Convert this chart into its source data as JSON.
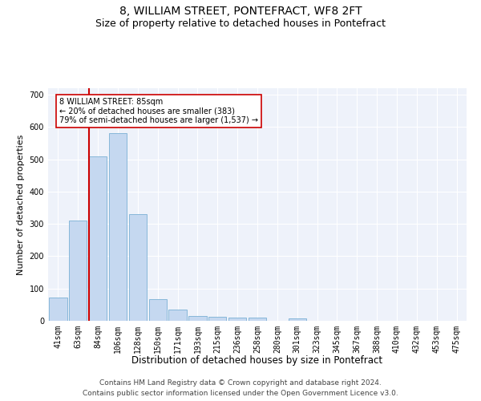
{
  "title": "8, WILLIAM STREET, PONTEFRACT, WF8 2FT",
  "subtitle": "Size of property relative to detached houses in Pontefract",
  "xlabel": "Distribution of detached houses by size in Pontefract",
  "ylabel": "Number of detached properties",
  "categories": [
    "41sqm",
    "63sqm",
    "84sqm",
    "106sqm",
    "128sqm",
    "150sqm",
    "171sqm",
    "193sqm",
    "215sqm",
    "236sqm",
    "258sqm",
    "280sqm",
    "301sqm",
    "323sqm",
    "345sqm",
    "367sqm",
    "388sqm",
    "410sqm",
    "432sqm",
    "453sqm",
    "475sqm"
  ],
  "values": [
    72,
    310,
    510,
    580,
    330,
    68,
    36,
    15,
    12,
    10,
    10,
    0,
    8,
    0,
    0,
    0,
    0,
    0,
    0,
    0,
    0
  ],
  "bar_color": "#c5d8f0",
  "bar_edge_color": "#7ab0d4",
  "property_line_color": "#cc0000",
  "annotation_text": "8 WILLIAM STREET: 85sqm\n← 20% of detached houses are smaller (383)\n79% of semi-detached houses are larger (1,537) →",
  "annotation_box_color": "#ffffff",
  "annotation_box_edge": "#cc0000",
  "ylim": [
    0,
    720
  ],
  "yticks": [
    0,
    100,
    200,
    300,
    400,
    500,
    600,
    700
  ],
  "background_color": "#eef2fa",
  "footer_line1": "Contains HM Land Registry data © Crown copyright and database right 2024.",
  "footer_line2": "Contains public sector information licensed under the Open Government Licence v3.0.",
  "title_fontsize": 10,
  "subtitle_fontsize": 9,
  "xlabel_fontsize": 8.5,
  "ylabel_fontsize": 8,
  "tick_fontsize": 7,
  "footer_fontsize": 6.5
}
